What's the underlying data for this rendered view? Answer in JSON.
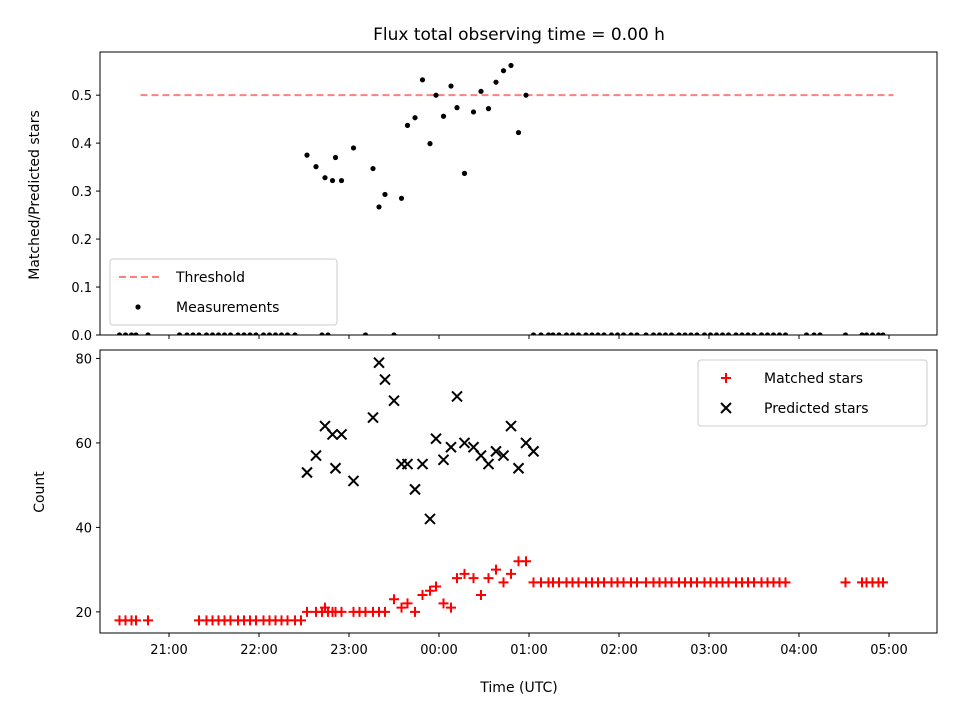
{
  "chart_data": [
    {
      "type": "scatter",
      "title": "Flux total observing time = 0.00 h",
      "xlabel": "",
      "ylabel": "Matched/Predicted stars",
      "xlim": [
        "20:14",
        "05:32"
      ],
      "ylim": [
        0,
        0.59
      ],
      "yticks": [
        "0.0",
        "0.1",
        "0.2",
        "0.3",
        "0.4",
        "0.5"
      ],
      "legend": "lower-left",
      "series": [
        {
          "name": "Threshold",
          "kind": "dashed-line",
          "color": "#ff7f7f",
          "x": [
            "20:41",
            "05:03"
          ],
          "y": [
            0.5,
            0.5
          ]
        },
        {
          "name": "Measurements",
          "kind": "scatter",
          "color": "#000000",
          "x": [
            "20:27",
            "20:31",
            "20:35",
            "20:38",
            "20:46",
            "21:07",
            "21:12",
            "21:16",
            "21:20",
            "21:25",
            "21:29",
            "21:33",
            "21:37",
            "21:41",
            "21:46",
            "21:50",
            "21:54",
            "21:58",
            "22:03",
            "22:07",
            "22:11",
            "22:15",
            "22:19",
            "22:24",
            "22:42",
            "22:46",
            "22:32",
            "22:38",
            "22:44",
            "22:49",
            "22:55",
            "22:51",
            "23:03",
            "23:11",
            "23:16",
            "23:20",
            "23:24",
            "23:35",
            "23:30",
            "23:39",
            "23:44",
            "23:49",
            "23:54",
            "23:58",
            "00:03",
            "00:08",
            "00:12",
            "00:17",
            "00:23",
            "00:28",
            "00:33",
            "00:38",
            "00:43",
            "00:48",
            "00:53",
            "00:58",
            "01:03",
            "01:08",
            "01:13",
            "01:16",
            "01:20",
            "01:25",
            "01:29",
            "01:33",
            "01:38",
            "01:42",
            "01:46",
            "01:50",
            "01:55",
            "01:59",
            "02:03",
            "02:08",
            "02:12",
            "02:18",
            "02:23",
            "02:27",
            "02:31",
            "02:35",
            "02:40",
            "02:44",
            "02:48",
            "02:52",
            "02:57",
            "03:01",
            "03:05",
            "03:09",
            "03:13",
            "03:18",
            "03:22",
            "03:26",
            "03:30",
            "03:35",
            "03:39",
            "03:43",
            "03:47",
            "03:51",
            "04:05",
            "04:10",
            "04:14",
            "04:31",
            "04:42",
            "04:45",
            "04:49",
            "04:53",
            "04:56"
          ],
          "y": [
            0,
            0,
            0,
            0,
            0,
            0,
            0,
            0,
            0,
            0,
            0,
            0,
            0,
            0,
            0,
            0,
            0,
            0,
            0,
            0,
            0,
            0,
            0,
            0,
            0,
            0,
            0.375,
            0.351,
            0.328,
            0.322,
            0.322,
            0.37,
            0.39,
            0,
            0.347,
            0.267,
            0.293,
            0.285,
            0,
            0.437,
            0.453,
            0.532,
            0.399,
            0.5,
            0.456,
            0.519,
            0.474,
            0.337,
            0.465,
            0.508,
            0.472,
            0.527,
            0.551,
            0.562,
            0.422,
            0.5,
            0,
            0,
            0,
            0,
            0,
            0,
            0,
            0,
            0,
            0,
            0,
            0,
            0,
            0,
            0,
            0,
            0,
            0,
            0,
            0,
            0,
            0,
            0,
            0,
            0,
            0,
            0,
            0,
            0,
            0,
            0,
            0,
            0,
            0,
            0,
            0,
            0,
            0,
            0,
            0,
            0,
            0,
            0,
            0,
            0,
            0,
            0,
            0,
            0
          ]
        }
      ]
    },
    {
      "type": "scatter",
      "title": "",
      "xlabel": "Time (UTC)",
      "ylabel": "Count",
      "xlim": [
        "20:14",
        "05:32"
      ],
      "ylim": [
        15,
        82
      ],
      "yticks": [
        "20",
        "40",
        "60",
        "80"
      ],
      "xticks": [
        "21:00",
        "22:00",
        "23:00",
        "00:00",
        "01:00",
        "02:00",
        "03:00",
        "04:00",
        "05:00"
      ],
      "legend": "top-right",
      "series": [
        {
          "name": "Matched stars",
          "kind": "plus",
          "color": "#ff0000",
          "x": [
            "20:27",
            "20:31",
            "20:35",
            "20:38",
            "20:46",
            "21:20",
            "21:25",
            "21:29",
            "21:33",
            "21:37",
            "21:41",
            "21:46",
            "21:50",
            "21:54",
            "21:58",
            "22:03",
            "22:07",
            "22:11",
            "22:15",
            "22:19",
            "22:24",
            "22:28",
            "22:42",
            "22:46",
            "22:32",
            "22:38",
            "22:44",
            "22:49",
            "22:55",
            "22:51",
            "23:03",
            "23:07",
            "23:11",
            "23:16",
            "23:20",
            "23:24",
            "23:30",
            "23:35",
            "23:39",
            "23:44",
            "23:49",
            "23:54",
            "23:58",
            "00:03",
            "00:08",
            "00:12",
            "00:17",
            "00:23",
            "00:28",
            "00:33",
            "00:38",
            "00:43",
            "00:48",
            "00:53",
            "00:58",
            "01:03",
            "01:08",
            "01:13",
            "01:16",
            "01:20",
            "01:25",
            "01:29",
            "01:33",
            "01:38",
            "01:42",
            "01:46",
            "01:50",
            "01:55",
            "01:59",
            "02:03",
            "02:08",
            "02:12",
            "02:18",
            "02:23",
            "02:27",
            "02:31",
            "02:35",
            "02:40",
            "02:44",
            "02:48",
            "02:52",
            "02:57",
            "03:01",
            "03:05",
            "03:09",
            "03:13",
            "03:18",
            "03:22",
            "03:26",
            "03:30",
            "03:35",
            "03:39",
            "03:43",
            "03:47",
            "03:51",
            "04:31",
            "04:42",
            "04:45",
            "04:49",
            "04:53",
            "04:56"
          ],
          "y": [
            18,
            18,
            18,
            18,
            18,
            18,
            18,
            18,
            18,
            18,
            18,
            18,
            18,
            18,
            18,
            18,
            18,
            18,
            18,
            18,
            18,
            18,
            20,
            20,
            20,
            20,
            21,
            20,
            20,
            20,
            20,
            20,
            20,
            20,
            20,
            20,
            23,
            21,
            22,
            20,
            24,
            25,
            26,
            22,
            21,
            28,
            29,
            28,
            24,
            28,
            30,
            27,
            29,
            32,
            32,
            27,
            27,
            27,
            27,
            27,
            27,
            27,
            27,
            27,
            27,
            27,
            27,
            27,
            27,
            27,
            27,
            27,
            27,
            27,
            27,
            27,
            27,
            27,
            27,
            27,
            27,
            27,
            27,
            27,
            27,
            27,
            27,
            27,
            27,
            27,
            27,
            27,
            27,
            27,
            27,
            27,
            27,
            27,
            27,
            27,
            27
          ]
        },
        {
          "name": "Predicted stars",
          "kind": "x",
          "color": "#000000",
          "x": [
            "22:32",
            "22:38",
            "22:44",
            "22:49",
            "22:55",
            "22:51",
            "23:03",
            "23:16",
            "23:20",
            "23:24",
            "23:30",
            "23:35",
            "23:39",
            "23:44",
            "23:49",
            "23:54",
            "23:58",
            "00:03",
            "00:08",
            "00:12",
            "00:17",
            "00:23",
            "00:28",
            "00:33",
            "00:38",
            "00:43",
            "00:48",
            "00:53",
            "00:58",
            "01:03"
          ],
          "y": [
            53,
            57,
            64,
            62,
            62,
            54,
            51,
            66,
            79,
            75,
            70,
            55,
            55,
            49,
            55,
            42,
            61,
            56,
            59,
            71,
            60,
            59,
            57,
            55,
            58,
            57,
            64,
            54,
            60,
            58
          ]
        }
      ]
    }
  ]
}
